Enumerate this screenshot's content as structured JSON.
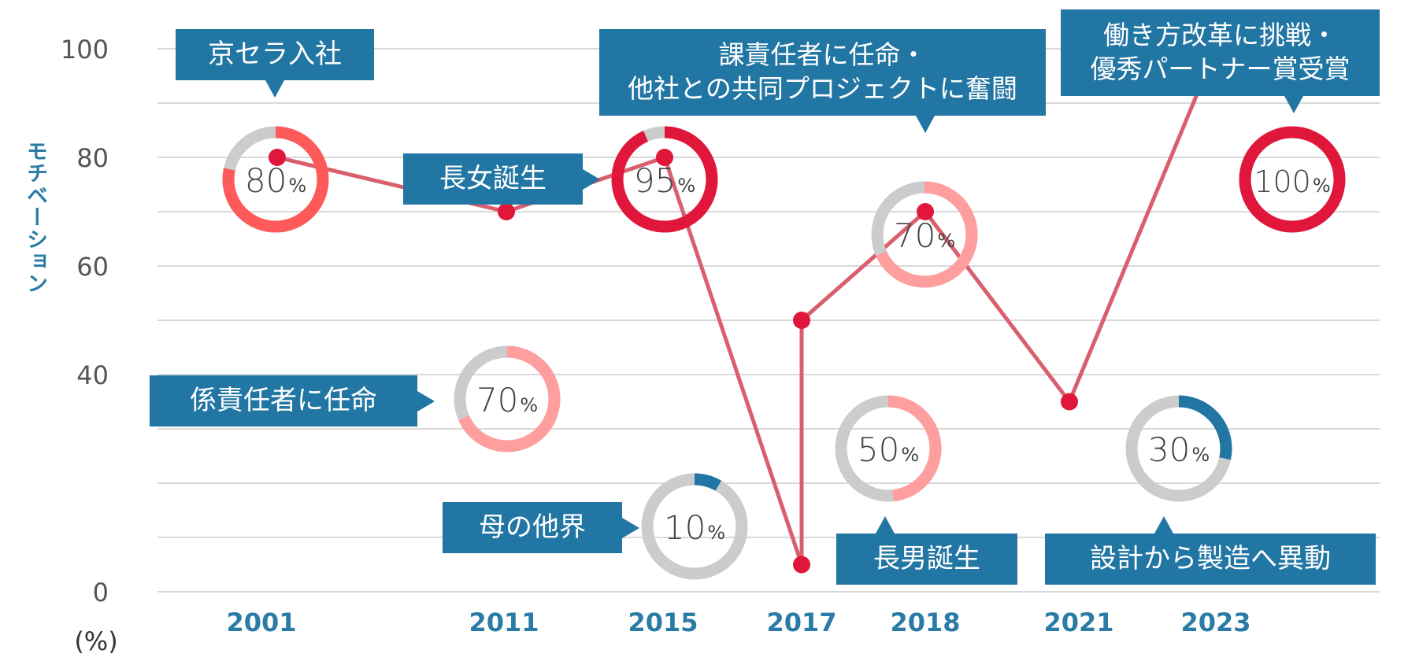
{
  "chart_data": {
    "type": "line",
    "ylabel": "モチベーション",
    "yunit": "(%)",
    "ylim": [
      0,
      100
    ],
    "yticks": [
      0,
      40,
      60,
      80,
      100
    ],
    "grid": true,
    "x": [
      "2001",
      "2011",
      "2015",
      "2017",
      "2017",
      "2018",
      "2021",
      "2023"
    ],
    "xticks": [
      "2001",
      "2011",
      "2015",
      "2017",
      "2018",
      "2021",
      "2023"
    ],
    "values": [
      80,
      70,
      80,
      5,
      50,
      70,
      35,
      100
    ],
    "line_color": "#d95f6e",
    "point_color": "#e0173a",
    "donuts": [
      {
        "value": 80,
        "label": "80",
        "unit": "%",
        "color": "#ff5a5a"
      },
      {
        "value": 95,
        "label": "95",
        "unit": "%",
        "color": "#e0173a"
      },
      {
        "value": 70,
        "label": "70",
        "unit": "%",
        "color": "#ff9e9e"
      },
      {
        "value": 100,
        "label": "100",
        "unit": "%",
        "color": "#e0173a"
      },
      {
        "value": 70,
        "label": "70",
        "unit": "%",
        "color": "#ff9e9e"
      },
      {
        "value": 10,
        "label": "10",
        "unit": "%",
        "color": "#2276a3"
      },
      {
        "value": 50,
        "label": "50",
        "unit": "%",
        "color": "#ff9e9e"
      },
      {
        "value": 30,
        "label": "30",
        "unit": "%",
        "color": "#2276a3"
      }
    ],
    "donut_track_color": "#cccccc",
    "annotations": [
      {
        "text": "京セラ入社"
      },
      {
        "text": "課責任者に任命・\n他社との共同プロジェクトに奮闘"
      },
      {
        "text": "働き方改革に挑戦・\n優秀パートナー賞受賞"
      },
      {
        "text": "長女誕生"
      },
      {
        "text": "係責任者に任命"
      },
      {
        "text": "母の他界"
      },
      {
        "text": "長男誕生"
      },
      {
        "text": "設計から製造へ異動"
      }
    ],
    "annotation_color": "#2276a3",
    "tick_color": "#2a7ba5"
  }
}
